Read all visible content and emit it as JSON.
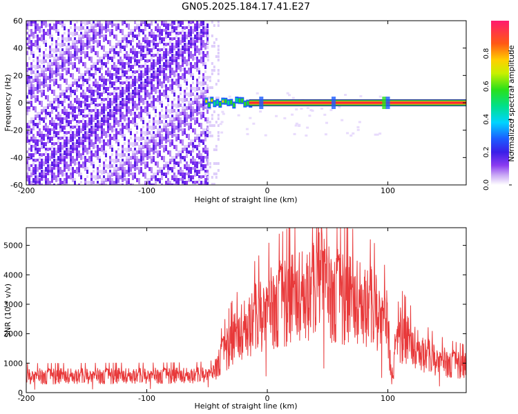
{
  "figure": {
    "title": "GN05.2025.184.17.41.E27"
  },
  "chart_data": [
    {
      "type": "heatmap",
      "title": "GN05.2025.184.17.41.E27",
      "xlabel": "Height of straight line (km)",
      "ylabel": "Frequency (Hz)",
      "xlim": [
        -200,
        165
      ],
      "ylim": [
        -60,
        60
      ],
      "xticks": [
        "-200",
        "-100",
        "0",
        "100"
      ],
      "yticks": [
        "60",
        "40",
        "20",
        "0",
        "-20",
        "-40",
        "-60"
      ],
      "colorbar": {
        "label": "Normalized spectral amplitude",
        "range": [
          0,
          1
        ],
        "ticks": [
          "0.0",
          "0.2",
          "0.4",
          "0.6",
          "0.8"
        ]
      },
      "regions": [
        {
          "x": [
            -200,
            -50
          ],
          "freq": [
            -60,
            60
          ],
          "amplitude": "low (noise, ~0.0-0.2)"
        },
        {
          "x": [
            -52,
            -15
          ],
          "freq": [
            -5,
            3
          ],
          "amplitude": "rising (0.2-0.6)"
        },
        {
          "x": [
            -15,
            165
          ],
          "freq": [
            -2,
            2
          ],
          "amplitude": "peak ~1.0 centered at 0 Hz"
        }
      ],
      "grid": false
    },
    {
      "type": "line",
      "xlabel": "Height of straight line (km)",
      "ylabel": "SNR (10 * v/v)",
      "xlim": [
        -200,
        165
      ],
      "ylim": [
        0,
        5600
      ],
      "xticks": [
        "-200",
        "-100",
        "0",
        "100"
      ],
      "yticks": [
        "0",
        "1000",
        "2000",
        "3000",
        "4000",
        "5000"
      ],
      "color": "#e8393a",
      "series": [
        {
          "x": [
            -200,
            -150,
            -100,
            -60,
            -45,
            -40,
            -30,
            -20,
            -10,
            0,
            10,
            20,
            30,
            40,
            44,
            50,
            60,
            70,
            80,
            90,
            95,
            100,
            103,
            110,
            120,
            130,
            140,
            150,
            165
          ],
          "values": [
            550,
            560,
            570,
            580,
            650,
            1100,
            1700,
            2100,
            2500,
            2800,
            3000,
            3150,
            3300,
            3450,
            4800,
            3350,
            3250,
            3100,
            3000,
            2800,
            2500,
            2300,
            500,
            2000,
            1600,
            1300,
            1100,
            1000,
            900
          ]
        }
      ],
      "grid": false
    }
  ]
}
